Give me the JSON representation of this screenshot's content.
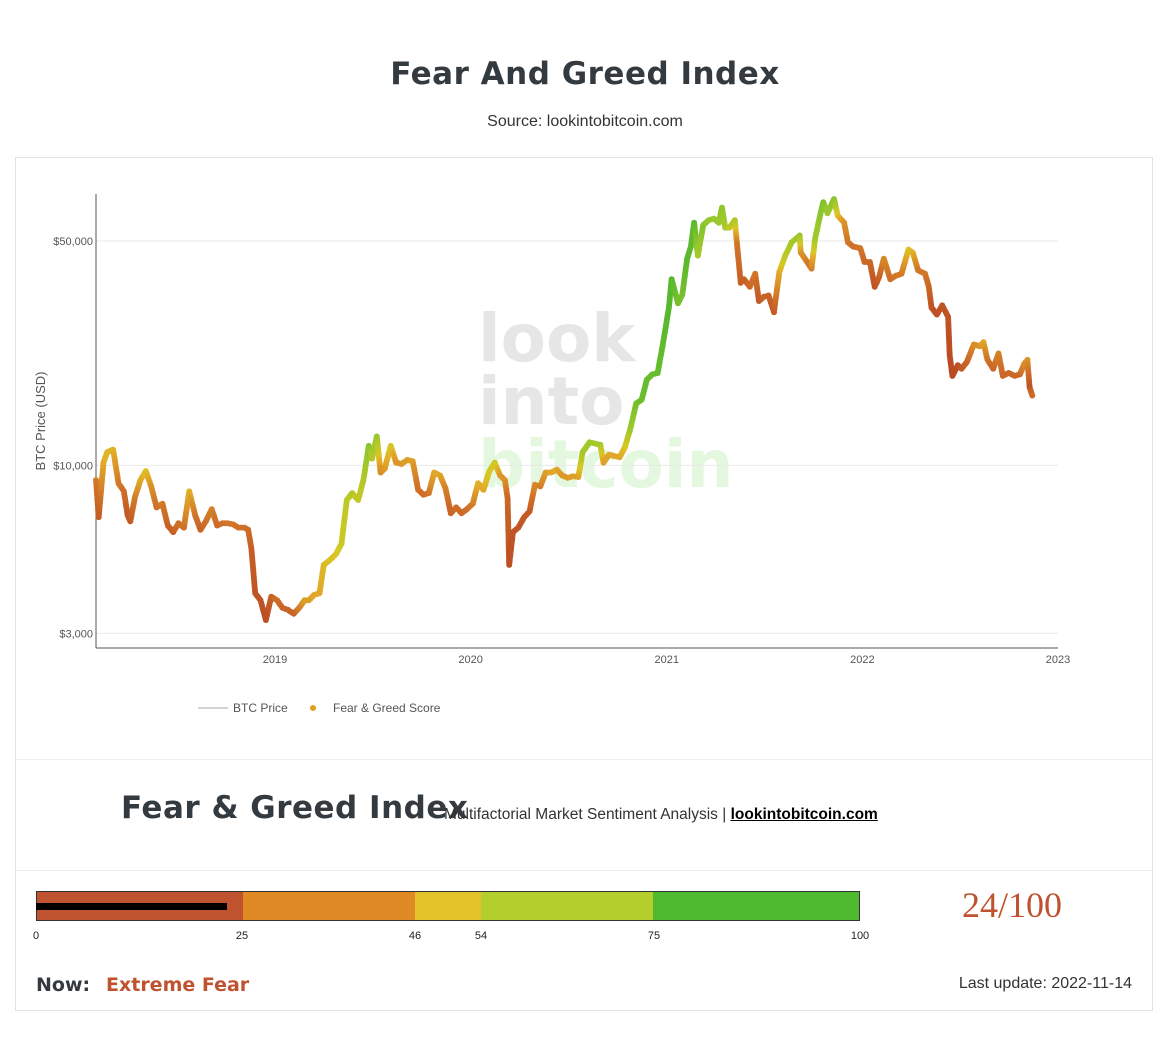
{
  "page": {
    "title": "Fear And Greed Index",
    "source": "Source: lookintobitcoin.com"
  },
  "watermark": {
    "line1": "look",
    "line2": "into",
    "line3": "bitcoin"
  },
  "chart_data": {
    "type": "line",
    "ylabel": "BTC Price (USD)",
    "yscale": "log",
    "ylim": [
      2700,
      70000
    ],
    "xlim": [
      "2018-02-01",
      "2023-01-01"
    ],
    "yticks": [
      {
        "value": 3000,
        "label": "$3,000"
      },
      {
        "value": 10000,
        "label": "$10,000"
      },
      {
        "value": 50000,
        "label": "$50,000"
      }
    ],
    "xticks": [
      {
        "value": "2019-01-01",
        "label": "2019"
      },
      {
        "value": "2020-01-01",
        "label": "2020"
      },
      {
        "value": "2021-01-01",
        "label": "2021"
      },
      {
        "value": "2022-01-01",
        "label": "2022"
      },
      {
        "value": "2023-01-01",
        "label": "2023"
      }
    ],
    "grid": true,
    "legend": {
      "placement": "bottom-left",
      "items": [
        {
          "name": "BTC Price",
          "kind": "line",
          "color": "#aaaaaa"
        },
        {
          "name": "Fear & Greed Score",
          "kind": "marker",
          "color": "#e0a020"
        }
      ]
    },
    "series": [
      {
        "name": "BTC Price",
        "kind": "line",
        "color": "#aaaaaa",
        "points": [
          [
            "2018-02-01",
            9000,
            30
          ],
          [
            "2018-02-06",
            6900,
            15
          ],
          [
            "2018-02-15",
            10200,
            45
          ],
          [
            "2018-02-22",
            11000,
            50
          ],
          [
            "2018-03-05",
            11200,
            48
          ],
          [
            "2018-03-15",
            8800,
            30
          ],
          [
            "2018-03-25",
            8300,
            25
          ],
          [
            "2018-04-01",
            7000,
            15
          ],
          [
            "2018-04-06",
            6700,
            15
          ],
          [
            "2018-04-15",
            8000,
            30
          ],
          [
            "2018-04-25",
            9000,
            45
          ],
          [
            "2018-05-05",
            9600,
            52
          ],
          [
            "2018-05-15",
            8600,
            38
          ],
          [
            "2018-05-25",
            7400,
            25
          ],
          [
            "2018-06-05",
            7600,
            30
          ],
          [
            "2018-06-15",
            6500,
            20
          ],
          [
            "2018-06-25",
            6200,
            18
          ],
          [
            "2018-07-05",
            6600,
            25
          ],
          [
            "2018-07-15",
            6400,
            25
          ],
          [
            "2018-07-25",
            8300,
            48
          ],
          [
            "2018-08-05",
            7000,
            28
          ],
          [
            "2018-08-15",
            6300,
            20
          ],
          [
            "2018-08-25",
            6700,
            25
          ],
          [
            "2018-09-05",
            7300,
            32
          ],
          [
            "2018-09-15",
            6500,
            24
          ],
          [
            "2018-09-25",
            6600,
            25
          ],
          [
            "2018-10-05",
            6600,
            28
          ],
          [
            "2018-10-15",
            6550,
            28
          ],
          [
            "2018-10-25",
            6400,
            26
          ],
          [
            "2018-11-05",
            6400,
            26
          ],
          [
            "2018-11-12",
            6300,
            25
          ],
          [
            "2018-11-18",
            5500,
            18
          ],
          [
            "2018-11-25",
            4000,
            12
          ],
          [
            "2018-12-05",
            3800,
            12
          ],
          [
            "2018-12-15",
            3300,
            8
          ],
          [
            "2018-12-25",
            3900,
            18
          ],
          [
            "2019-01-05",
            3800,
            25
          ],
          [
            "2019-01-15",
            3600,
            20
          ],
          [
            "2019-01-25",
            3550,
            20
          ],
          [
            "2019-02-05",
            3450,
            20
          ],
          [
            "2019-02-15",
            3600,
            30
          ],
          [
            "2019-02-25",
            3800,
            42
          ],
          [
            "2019-03-05",
            3800,
            42
          ],
          [
            "2019-03-15",
            3950,
            45
          ],
          [
            "2019-03-25",
            4000,
            45
          ],
          [
            "2019-04-02",
            4900,
            50
          ],
          [
            "2019-04-15",
            5100,
            52
          ],
          [
            "2019-04-25",
            5300,
            52
          ],
          [
            "2019-05-05",
            5700,
            58
          ],
          [
            "2019-05-15",
            7800,
            62
          ],
          [
            "2019-05-25",
            8200,
            65
          ],
          [
            "2019-06-05",
            7800,
            60
          ],
          [
            "2019-06-15",
            9000,
            65
          ],
          [
            "2019-06-25",
            11500,
            80
          ],
          [
            "2019-07-01",
            10500,
            65
          ],
          [
            "2019-07-10",
            12300,
            75
          ],
          [
            "2019-07-17",
            9500,
            35
          ],
          [
            "2019-07-25",
            9800,
            40
          ],
          [
            "2019-08-05",
            11500,
            55
          ],
          [
            "2019-08-15",
            10200,
            38
          ],
          [
            "2019-08-25",
            10100,
            40
          ],
          [
            "2019-09-05",
            10400,
            42
          ],
          [
            "2019-09-15",
            10300,
            42
          ],
          [
            "2019-09-25",
            8400,
            25
          ],
          [
            "2019-10-05",
            8100,
            25
          ],
          [
            "2019-10-15",
            8200,
            28
          ],
          [
            "2019-10-25",
            9500,
            45
          ],
          [
            "2019-11-05",
            9300,
            45
          ],
          [
            "2019-11-15",
            8500,
            32
          ],
          [
            "2019-11-25",
            7100,
            20
          ],
          [
            "2019-12-05",
            7400,
            25
          ],
          [
            "2019-12-15",
            7100,
            22
          ],
          [
            "2019-12-25",
            7300,
            25
          ],
          [
            "2020-01-05",
            7600,
            30
          ],
          [
            "2020-01-15",
            8800,
            48
          ],
          [
            "2020-01-25",
            8400,
            45
          ],
          [
            "2020-02-05",
            9600,
            55
          ],
          [
            "2020-02-15",
            10200,
            58
          ],
          [
            "2020-02-25",
            9300,
            40
          ],
          [
            "2020-03-05",
            9000,
            38
          ],
          [
            "2020-03-10",
            7900,
            22
          ],
          [
            "2020-03-13",
            4900,
            10
          ],
          [
            "2020-03-20",
            6200,
            12
          ],
          [
            "2020-03-30",
            6400,
            12
          ],
          [
            "2020-04-10",
            6900,
            15
          ],
          [
            "2020-04-20",
            7200,
            15
          ],
          [
            "2020-04-30",
            8700,
            35
          ],
          [
            "2020-05-10",
            8600,
            30
          ],
          [
            "2020-05-20",
            9500,
            42
          ],
          [
            "2020-05-30",
            9500,
            45
          ],
          [
            "2020-06-10",
            9700,
            45
          ],
          [
            "2020-06-20",
            9300,
            40
          ],
          [
            "2020-06-30",
            9150,
            40
          ],
          [
            "2020-07-10",
            9250,
            42
          ],
          [
            "2020-07-20",
            9200,
            42
          ],
          [
            "2020-07-28",
            11000,
            70
          ],
          [
            "2020-08-10",
            11800,
            72
          ],
          [
            "2020-08-20",
            11700,
            70
          ],
          [
            "2020-08-30",
            11600,
            70
          ],
          [
            "2020-09-05",
            10200,
            42
          ],
          [
            "2020-09-15",
            10800,
            45
          ],
          [
            "2020-09-25",
            10700,
            45
          ],
          [
            "2020-10-05",
            10600,
            45
          ],
          [
            "2020-10-15",
            11400,
            52
          ],
          [
            "2020-10-25",
            13000,
            72
          ],
          [
            "2020-11-05",
            15600,
            85
          ],
          [
            "2020-11-15",
            16000,
            88
          ],
          [
            "2020-11-25",
            18500,
            90
          ],
          [
            "2020-12-05",
            19200,
            88
          ],
          [
            "2020-12-15",
            19400,
            90
          ],
          [
            "2020-12-25",
            24000,
            92
          ],
          [
            "2021-01-05",
            31000,
            95
          ],
          [
            "2021-01-10",
            38000,
            94
          ],
          [
            "2021-01-22",
            32000,
            85
          ],
          [
            "2021-01-30",
            34000,
            85
          ],
          [
            "2021-02-08",
            44000,
            94
          ],
          [
            "2021-02-15",
            48000,
            92
          ],
          [
            "2021-02-21",
            57000,
            94
          ],
          [
            "2021-02-28",
            45000,
            70
          ],
          [
            "2021-03-10",
            56000,
            80
          ],
          [
            "2021-03-20",
            58000,
            75
          ],
          [
            "2021-03-30",
            58700,
            75
          ],
          [
            "2021-04-08",
            57000,
            72
          ],
          [
            "2021-04-14",
            63500,
            78
          ],
          [
            "2021-04-20",
            55000,
            70
          ],
          [
            "2021-04-28",
            55000,
            60
          ],
          [
            "2021-05-08",
            58000,
            70
          ],
          [
            "2021-05-12",
            49000,
            28
          ],
          [
            "2021-05-19",
            37000,
            18
          ],
          [
            "2021-05-25",
            38000,
            18
          ],
          [
            "2021-06-05",
            36000,
            22
          ],
          [
            "2021-06-15",
            39500,
            28
          ],
          [
            "2021-06-22",
            32500,
            15
          ],
          [
            "2021-07-01",
            33500,
            20
          ],
          [
            "2021-07-10",
            33800,
            20
          ],
          [
            "2021-07-20",
            30000,
            15
          ],
          [
            "2021-07-30",
            40000,
            45
          ],
          [
            "2021-08-10",
            45000,
            62
          ],
          [
            "2021-08-22",
            49500,
            70
          ],
          [
            "2021-09-06",
            52000,
            75
          ],
          [
            "2021-09-08",
            46000,
            40
          ],
          [
            "2021-09-20",
            43000,
            30
          ],
          [
            "2021-09-28",
            41000,
            30
          ],
          [
            "2021-10-05",
            51000,
            70
          ],
          [
            "2021-10-15",
            61000,
            78
          ],
          [
            "2021-10-20",
            66000,
            82
          ],
          [
            "2021-10-28",
            61000,
            72
          ],
          [
            "2021-11-09",
            67500,
            80
          ],
          [
            "2021-11-16",
            60000,
            52
          ],
          [
            "2021-11-28",
            57000,
            38
          ],
          [
            "2021-12-05",
            49500,
            28
          ],
          [
            "2021-12-15",
            48000,
            25
          ],
          [
            "2021-12-28",
            47500,
            28
          ],
          [
            "2022-01-05",
            43000,
            22
          ],
          [
            "2022-01-15",
            43000,
            22
          ],
          [
            "2022-01-24",
            36000,
            12
          ],
          [
            "2022-02-01",
            38500,
            18
          ],
          [
            "2022-02-10",
            44000,
            35
          ],
          [
            "2022-02-22",
            38000,
            25
          ],
          [
            "2022-03-05",
            39000,
            28
          ],
          [
            "2022-03-15",
            39500,
            28
          ],
          [
            "2022-03-28",
            47000,
            52
          ],
          [
            "2022-04-05",
            46000,
            48
          ],
          [
            "2022-04-15",
            40500,
            28
          ],
          [
            "2022-04-28",
            39500,
            28
          ],
          [
            "2022-05-05",
            36000,
            22
          ],
          [
            "2022-05-10",
            31000,
            12
          ],
          [
            "2022-05-20",
            29500,
            10
          ],
          [
            "2022-05-30",
            31500,
            12
          ],
          [
            "2022-06-10",
            29000,
            12
          ],
          [
            "2022-06-13",
            22000,
            8
          ],
          [
            "2022-06-18",
            19000,
            7
          ],
          [
            "2022-06-28",
            20500,
            9
          ],
          [
            "2022-07-05",
            20000,
            15
          ],
          [
            "2022-07-15",
            21000,
            20
          ],
          [
            "2022-07-28",
            23800,
            35
          ],
          [
            "2022-08-08",
            23500,
            38
          ],
          [
            "2022-08-15",
            24200,
            45
          ],
          [
            "2022-08-22",
            21400,
            28
          ],
          [
            "2022-09-02",
            20000,
            22
          ],
          [
            "2022-09-12",
            22300,
            32
          ],
          [
            "2022-09-20",
            19000,
            22
          ],
          [
            "2022-10-01",
            19400,
            22
          ],
          [
            "2022-10-12",
            19000,
            22
          ],
          [
            "2022-10-22",
            19200,
            22
          ],
          [
            "2022-10-30",
            20700,
            35
          ],
          [
            "2022-11-05",
            21300,
            38
          ],
          [
            "2022-11-09",
            17500,
            12
          ],
          [
            "2022-11-14",
            16500,
            24
          ]
        ]
      }
    ]
  },
  "widget": {
    "title": "Fear & Greed Index",
    "subtitle_prefix": "Multifactorial Market Sentiment Analysis | ",
    "link_label": "lookintobitcoin.com",
    "score_label": "24/100",
    "value": 24,
    "segments": [
      {
        "from": 0,
        "to": 25,
        "color": "#c0532f"
      },
      {
        "from": 25,
        "to": 46,
        "color": "#e08a26"
      },
      {
        "from": 46,
        "to": 54,
        "color": "#e3c32a"
      },
      {
        "from": 54,
        "to": 75,
        "color": "#b3ce2d"
      },
      {
        "from": 75,
        "to": 100,
        "color": "#4fba2f"
      }
    ],
    "ticks": [
      "0",
      "25",
      "46",
      "54",
      "75",
      "100"
    ],
    "now_label": "Now:",
    "now_value": "Extreme Fear",
    "last_update": "Last update: 2022-11-14"
  }
}
